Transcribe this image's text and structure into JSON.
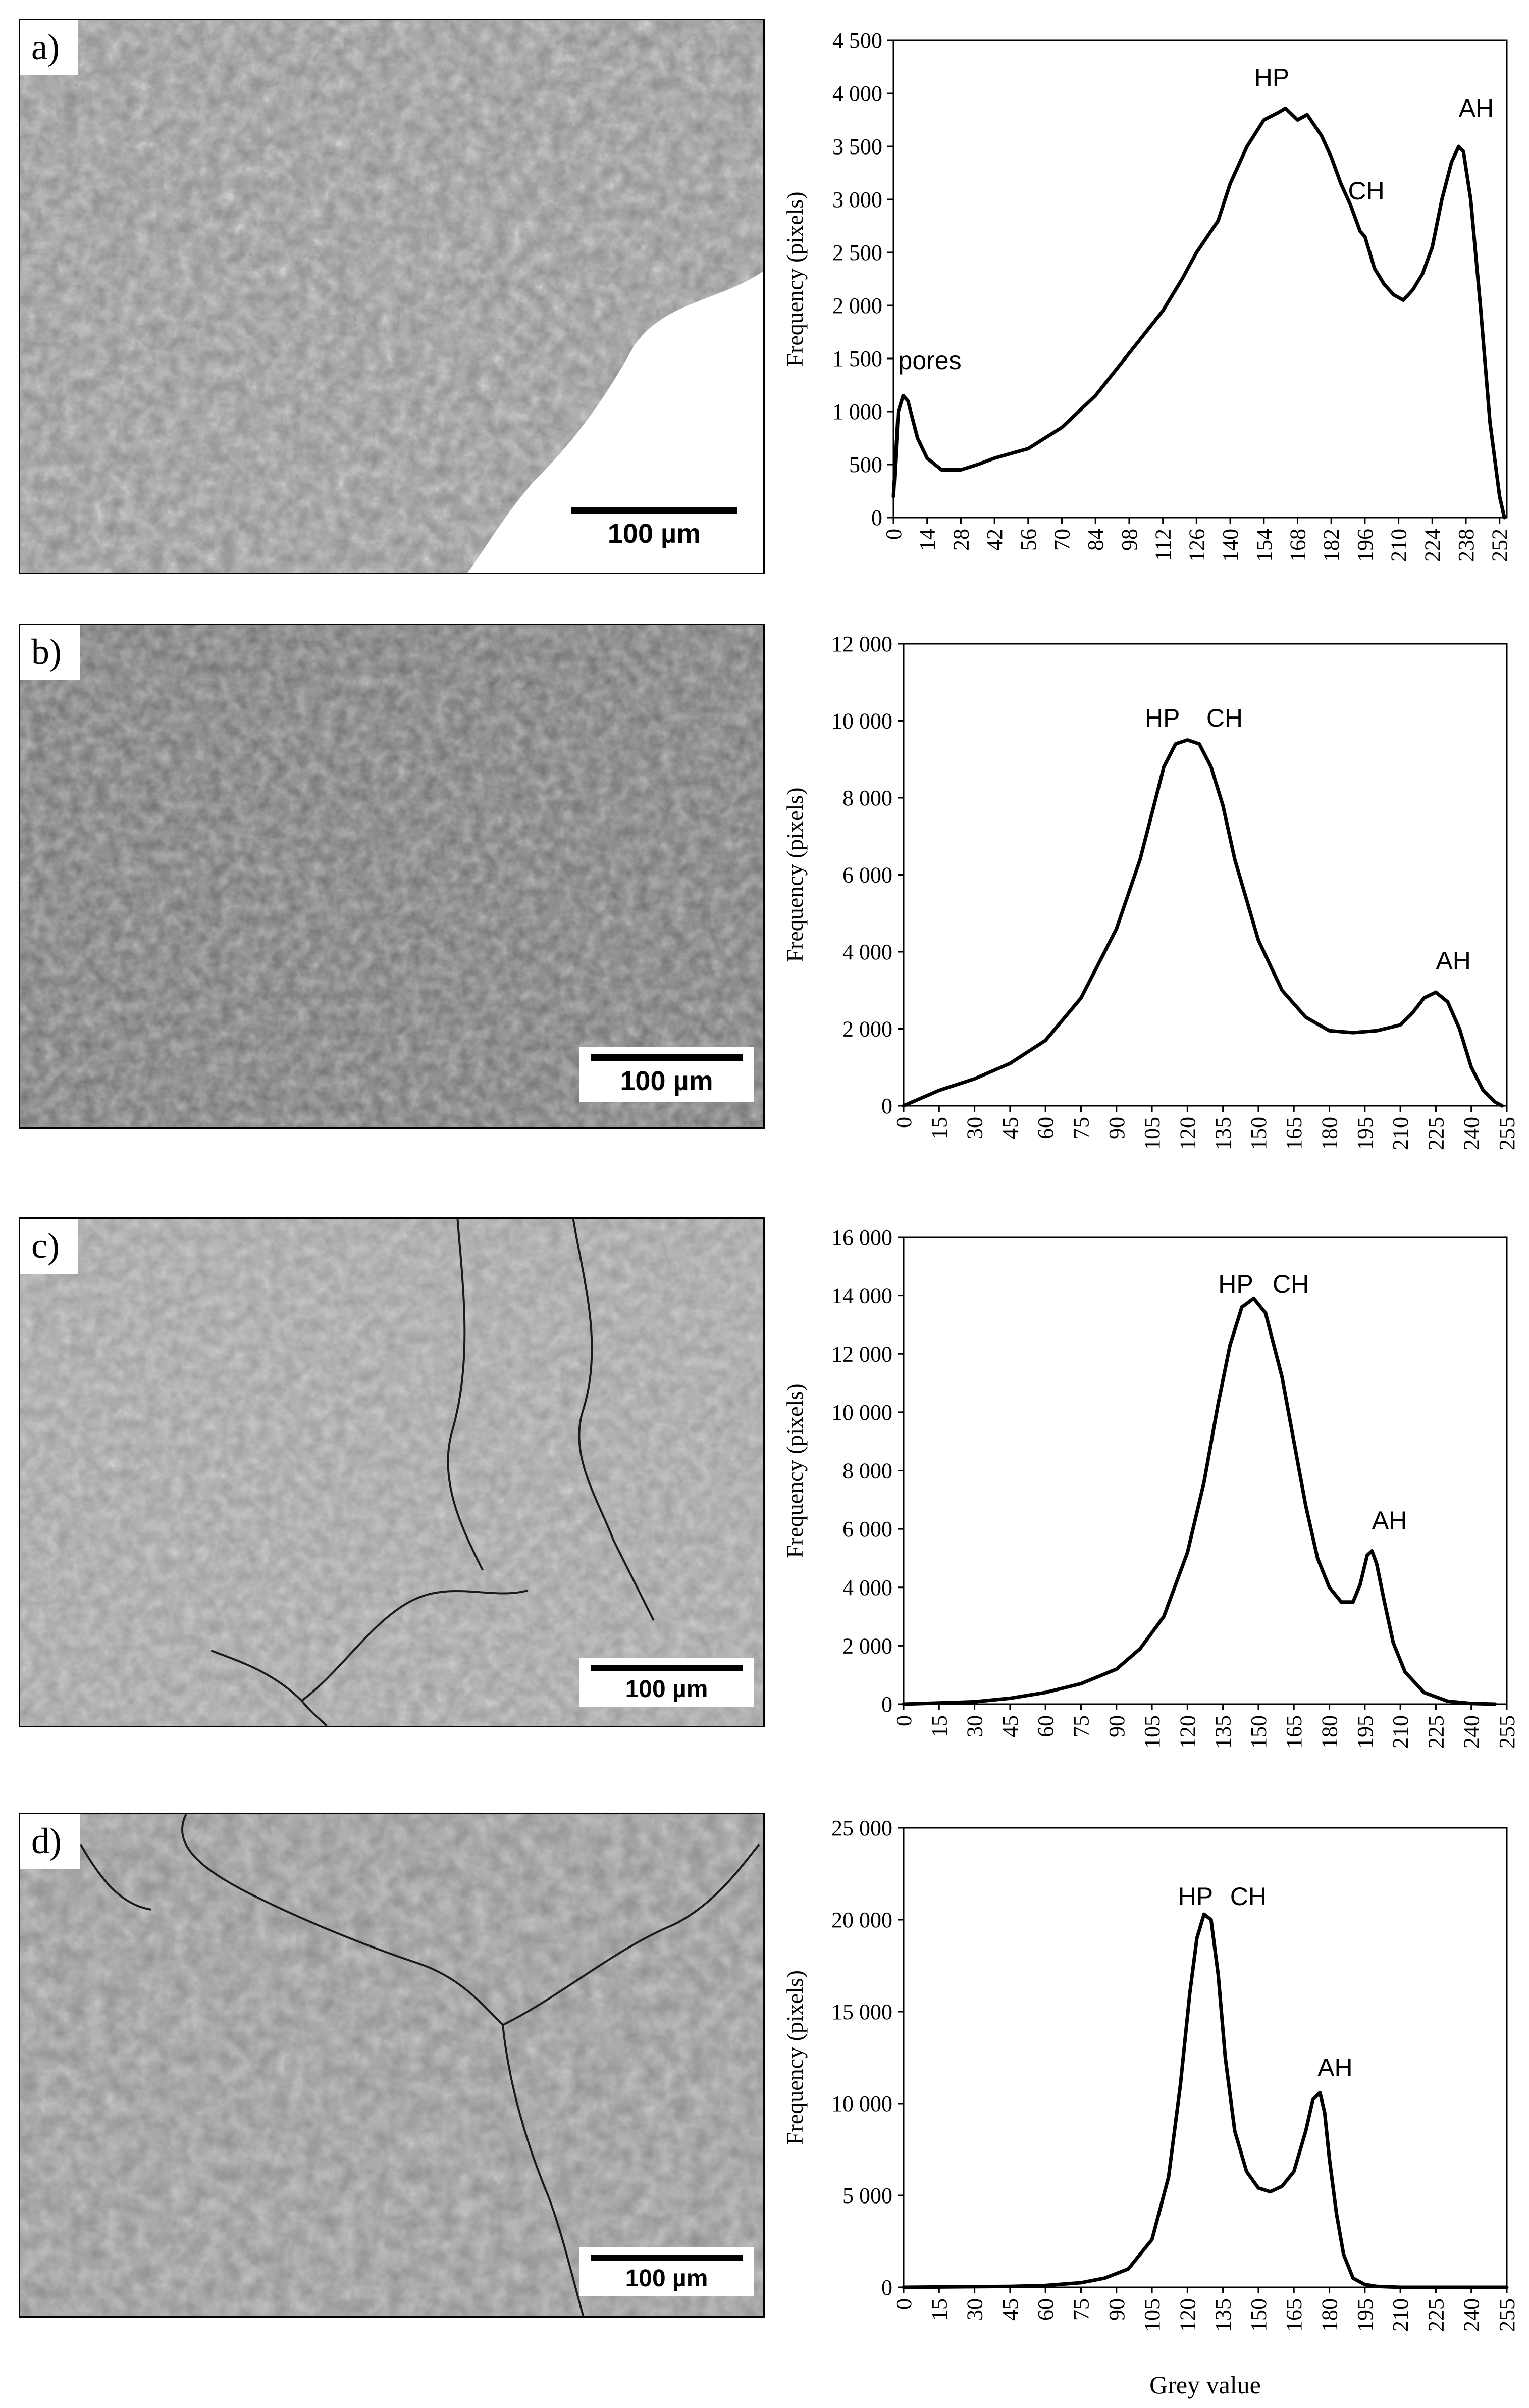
{
  "panels": [
    {
      "label": "a)",
      "scale_bar": "100 µm",
      "chart": {
        "type": "line",
        "xlabel": "",
        "ylabel": "Frequency (pixels)",
        "xlim": [
          0,
          255
        ],
        "ylim": [
          0,
          4500
        ],
        "x_ticks": [
          0,
          14,
          28,
          42,
          56,
          70,
          84,
          98,
          112,
          126,
          140,
          154,
          168,
          182,
          196,
          210,
          224,
          238,
          252
        ],
        "y_ticks": [
          0,
          500,
          1000,
          1500,
          2000,
          2500,
          3000,
          3500,
          4000,
          4500
        ],
        "y_tick_labels": [
          "0",
          "500",
          "1 000",
          "1 500",
          "2 000",
          "2 500",
          "3 000",
          "3 500",
          "4 000",
          "4 500"
        ],
        "series": [
          {
            "x": [
              0,
              2,
              4,
              6,
              10,
              14,
              20,
              28,
              35,
              42,
              56,
              70,
              84,
              98,
              112,
              120,
              126,
              135,
              140,
              147,
              154,
              160,
              163,
              168,
              172,
              178,
              182,
              186,
              190,
              194,
              196,
              200,
              204,
              208,
              212,
              216,
              220,
              224,
              228,
              232,
              235,
              237,
              240,
              244,
              248,
              252,
              254
            ],
            "y": [
              200,
              1000,
              1150,
              1100,
              750,
              560,
              450,
              450,
              500,
              560,
              650,
              850,
              1150,
              1550,
              1950,
              2250,
              2500,
              2800,
              3150,
              3500,
              3750,
              3820,
              3860,
              3750,
              3800,
              3600,
              3400,
              3150,
              2950,
              2700,
              2650,
              2350,
              2200,
              2100,
              2050,
              2150,
              2300,
              2550,
              3000,
              3350,
              3500,
              3450,
              3000,
              2000,
              900,
              200,
              0
            ]
          }
        ],
        "annotations": [
          {
            "text": "pores",
            "x": 2,
            "y": 1400
          },
          {
            "text": "HP",
            "x": 150,
            "y": 4070
          },
          {
            "text": "CH",
            "x": 189,
            "y": 3000
          },
          {
            "text": "AH",
            "x": 235,
            "y": 3780
          }
        ]
      }
    },
    {
      "label": "b)",
      "scale_bar": "100 µm",
      "chart": {
        "type": "line",
        "xlabel": "",
        "ylabel": "Frequency (pixels)",
        "xlim": [
          0,
          255
        ],
        "ylim": [
          0,
          12000
        ],
        "x_ticks": [
          0,
          15,
          30,
          45,
          60,
          75,
          90,
          105,
          120,
          135,
          150,
          165,
          180,
          195,
          210,
          225,
          240,
          255
        ],
        "y_ticks": [
          0,
          2000,
          4000,
          6000,
          8000,
          10000,
          12000
        ],
        "y_tick_labels": [
          "0",
          "2 000",
          "4 000",
          "6 000",
          "8 000",
          "10 000",
          "12 000"
        ],
        "series": [
          {
            "x": [
              0,
              15,
              30,
              45,
              60,
              75,
              90,
              100,
              105,
              110,
              115,
              120,
              125,
              130,
              135,
              140,
              150,
              160,
              170,
              180,
              190,
              200,
              210,
              215,
              220,
              225,
              230,
              235,
              240,
              245,
              250,
              253
            ],
            "y": [
              0,
              400,
              700,
              1100,
              1700,
              2800,
              4600,
              6400,
              7600,
              8800,
              9400,
              9500,
              9400,
              8800,
              7800,
              6400,
              4300,
              3000,
              2300,
              1950,
              1900,
              1950,
              2100,
              2400,
              2800,
              2950,
              2700,
              2000,
              1000,
              400,
              100,
              0
            ]
          }
        ],
        "annotations": [
          {
            "text": "HP",
            "x": 102,
            "y": 9850
          },
          {
            "text": "CH",
            "x": 128,
            "y": 9850
          },
          {
            "text": "AH",
            "x": 225,
            "y": 3550
          }
        ]
      }
    },
    {
      "label": "c)",
      "scale_bar": "100 µm",
      "chart": {
        "type": "line",
        "xlabel": "",
        "ylabel": "Frequency (pixels)",
        "xlim": [
          0,
          255
        ],
        "ylim": [
          0,
          16000
        ],
        "x_ticks": [
          0,
          15,
          30,
          45,
          60,
          75,
          90,
          105,
          120,
          135,
          150,
          165,
          180,
          195,
          210,
          225,
          240,
          255
        ],
        "y_ticks": [
          0,
          2000,
          4000,
          6000,
          8000,
          10000,
          12000,
          14000,
          16000
        ],
        "y_tick_labels": [
          "0",
          "2 000",
          "4 000",
          "6 000",
          "8 000",
          "10 000",
          "12 000",
          "14 000",
          "16 000"
        ],
        "series": [
          {
            "x": [
              0,
              30,
              45,
              60,
              75,
              90,
              100,
              110,
              120,
              127,
              133,
              138,
              143,
              148,
              153,
              160,
              165,
              170,
              175,
              180,
              185,
              190,
              193,
              196,
              198,
              200,
              203,
              207,
              212,
              220,
              230,
              240,
              250
            ],
            "y": [
              0,
              80,
              200,
              400,
              700,
              1200,
              1900,
              3000,
              5200,
              7600,
              10300,
              12300,
              13600,
              13900,
              13400,
              11200,
              9000,
              6800,
              5000,
              4000,
              3500,
              3500,
              4100,
              5100,
              5250,
              4800,
              3600,
              2100,
              1100,
              400,
              100,
              20,
              0
            ]
          }
        ],
        "annotations": [
          {
            "text": "HP",
            "x": 133,
            "y": 14100
          },
          {
            "text": "CH",
            "x": 156,
            "y": 14100
          },
          {
            "text": "AH",
            "x": 198,
            "y": 6000
          }
        ]
      }
    },
    {
      "label": "d)",
      "scale_bar": "100 µm",
      "chart": {
        "type": "line",
        "xlabel": "Grey value",
        "ylabel": "Frequency (pixels)",
        "xlim": [
          0,
          255
        ],
        "ylim": [
          0,
          25000
        ],
        "x_ticks": [
          0,
          15,
          30,
          45,
          60,
          75,
          90,
          105,
          120,
          135,
          150,
          165,
          180,
          195,
          210,
          225,
          240,
          255
        ],
        "y_ticks": [
          0,
          5000,
          10000,
          15000,
          20000,
          25000
        ],
        "y_tick_labels": [
          "0",
          "5 000",
          "10 000",
          "15 000",
          "20 000",
          "25 000"
        ],
        "series": [
          {
            "x": [
              0,
              45,
              60,
              75,
              85,
              95,
              105,
              112,
              117,
              121,
              124,
              127,
              130,
              133,
              136,
              140,
              145,
              150,
              155,
              160,
              165,
              170,
              173,
              176,
              178,
              180,
              183,
              186,
              190,
              195,
              200,
              210,
              255
            ],
            "y": [
              0,
              50,
              100,
              250,
              500,
              1000,
              2600,
              6000,
              11000,
              16000,
              19000,
              20300,
              20000,
              17000,
              12500,
              8500,
              6300,
              5400,
              5200,
              5500,
              6300,
              8500,
              10200,
              10600,
              9500,
              7000,
              4000,
              1800,
              500,
              150,
              50,
              0,
              0
            ]
          }
        ],
        "annotations": [
          {
            "text": "HP",
            "x": 116,
            "y": 20800
          },
          {
            "text": "CH",
            "x": 138,
            "y": 20800
          },
          {
            "text": "AH",
            "x": 175,
            "y": 11500
          }
        ]
      }
    }
  ]
}
